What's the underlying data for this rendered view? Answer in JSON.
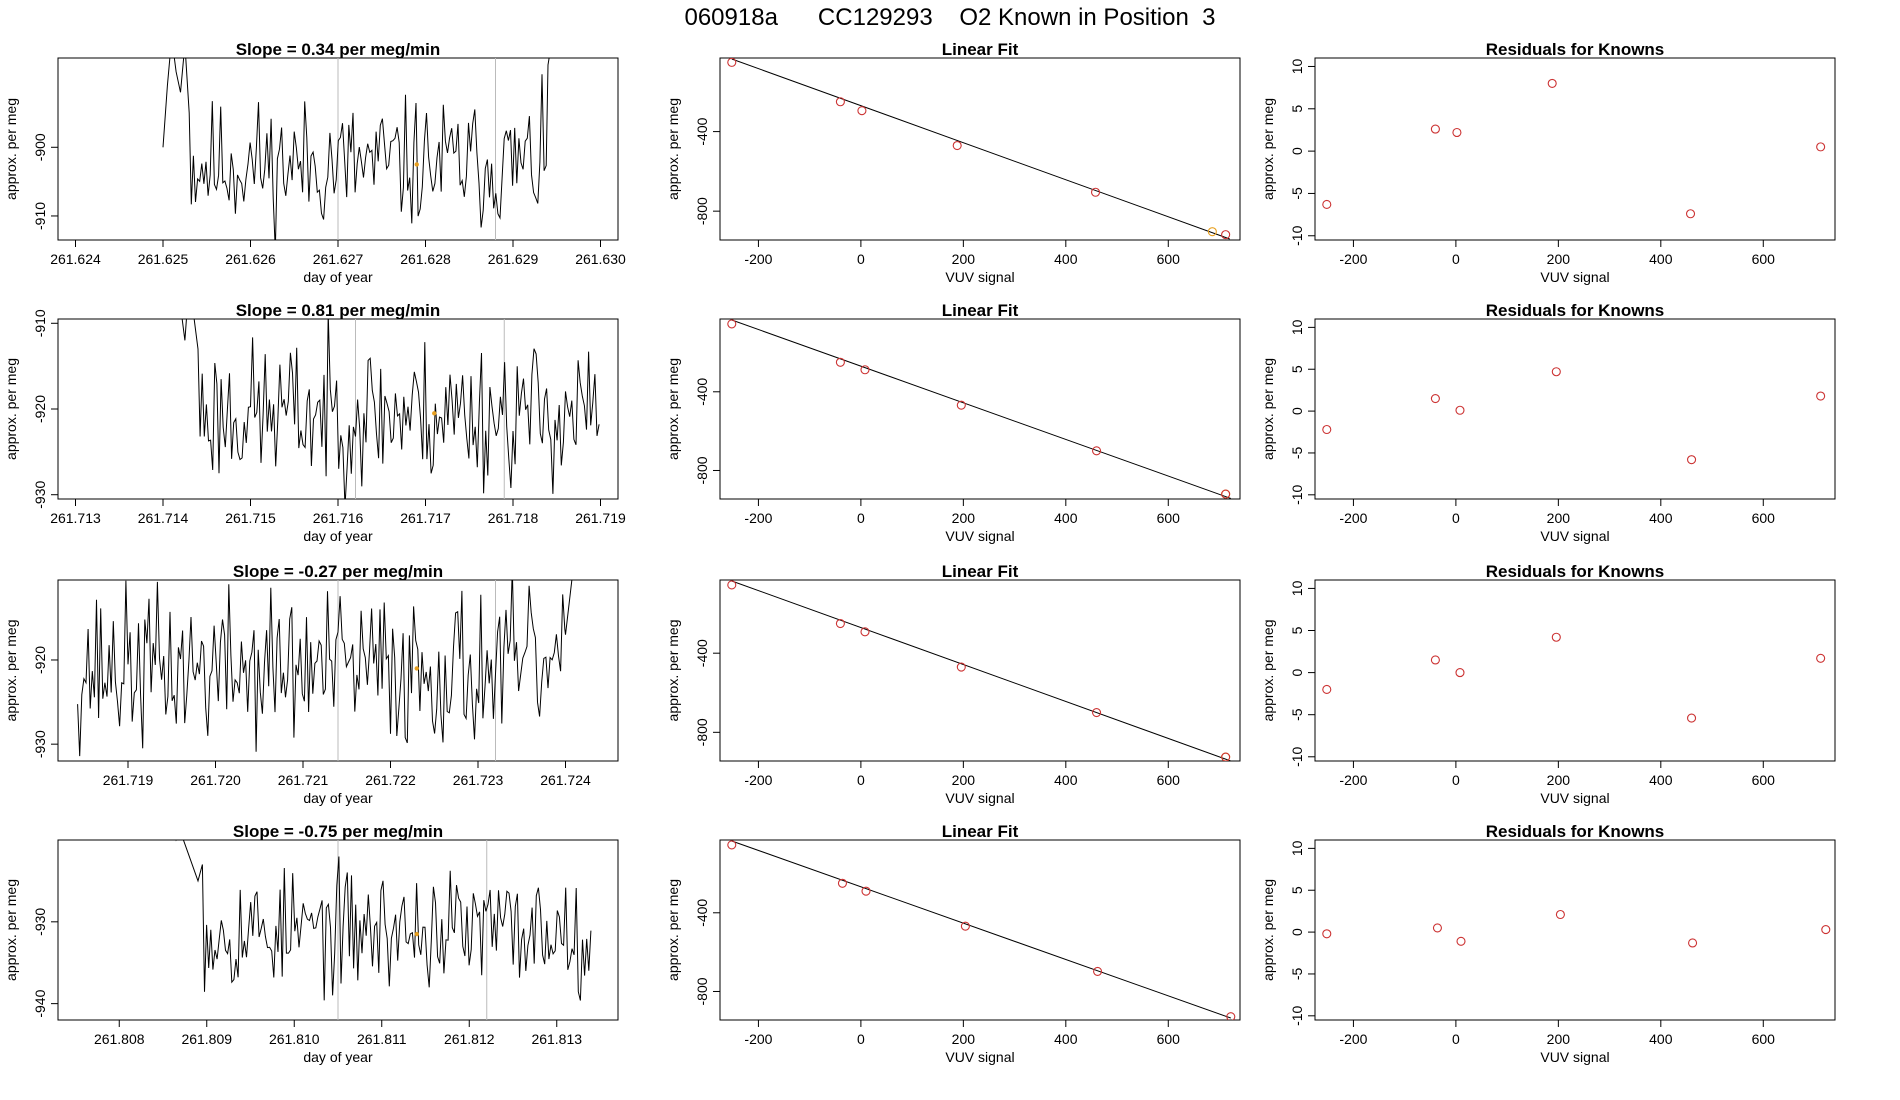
{
  "page_title": "060918a      CC129293    O2 Known in Position  3",
  "colors": {
    "line": "#000000",
    "known_point": "#cc3333",
    "highlight_point": "#e8a020",
    "vline": "#bbbbbb"
  },
  "chart_data": [
    {
      "id": "ts-1",
      "type": "line",
      "title": "Slope =  0.34  per meg/min",
      "xlabel": "day of year",
      "ylabel": "approx. per meg",
      "xlim": [
        261.6238,
        261.6302
      ],
      "ylim": [
        -913.5,
        -887.0
      ],
      "xticks": [
        261.624,
        261.625,
        261.626,
        261.627,
        261.628,
        261.629,
        261.63
      ],
      "xtick_labels": [
        "261.624",
        "261.625",
        "261.626",
        "261.627",
        "261.628",
        "261.629",
        "261.630"
      ],
      "yticks": [
        -900,
        -910
      ],
      "ytick_labels": [
        "-900",
        "-910"
      ],
      "series_start": 261.625,
      "series_end": 261.6295,
      "vlines": [
        261.627,
        261.6288
      ],
      "highlight": {
        "x": 261.6279,
        "y": -902.5
      },
      "seed": 11,
      "base": -902.5,
      "spread": 4.6,
      "ramp_points": [
        [
          261.625,
          -900.0
        ],
        [
          261.62505,
          -891.0
        ],
        [
          261.6251,
          -884.0
        ],
        [
          261.62515,
          -889.0
        ],
        [
          261.6252,
          -892.0
        ],
        [
          261.62525,
          -885.0
        ],
        [
          261.6253,
          -895.0
        ]
      ],
      "ramp_end_points": [
        [
          261.6294,
          -888.0
        ],
        [
          261.6295,
          -880.0
        ]
      ]
    },
    {
      "id": "fit-1",
      "type": "scatter",
      "title": "Linear Fit",
      "xlabel": "VUV signal",
      "ylabel": "approx. per meg",
      "xlim": [
        -275,
        740
      ],
      "ylim": [
        -945,
        -30
      ],
      "xticks": [
        -200,
        0,
        200,
        400,
        600
      ],
      "xtick_labels": [
        "-200",
        "0",
        "200",
        "400",
        "600"
      ],
      "yticks": [
        -400,
        -800
      ],
      "ytick_labels": [
        "-400",
        "-800"
      ],
      "fit_line": [
        [
          -252,
          -35
        ],
        [
          720,
          -940
        ]
      ],
      "x": [
        -252,
        -40,
        2,
        188,
        458,
        712
      ],
      "y": [
        -52,
        -250,
        -295,
        -470,
        -705,
        -918
      ],
      "highlight": {
        "x": 686,
        "y": -903
      }
    },
    {
      "id": "res-1",
      "type": "scatter",
      "title": "Residuals for Knowns",
      "xlabel": "VUV signal",
      "ylabel": "approx. per meg",
      "xlim": [
        -275,
        740
      ],
      "ylim": [
        -10.5,
        11
      ],
      "xticks": [
        -200,
        0,
        200,
        400,
        600
      ],
      "xtick_labels": [
        "-200",
        "0",
        "200",
        "400",
        "600"
      ],
      "yticks": [
        10,
        5,
        0,
        -5,
        -10
      ],
      "ytick_labels": [
        "10",
        "5",
        "0",
        "-5",
        "-10"
      ],
      "x": [
        -252,
        -40,
        2,
        188,
        458,
        712
      ],
      "y": [
        -6.3,
        2.6,
        2.2,
        8.0,
        -7.4,
        0.5
      ]
    },
    {
      "id": "ts-2",
      "type": "line",
      "title": "Slope =  0.81  per meg/min",
      "xlabel": "day of year",
      "ylabel": "approx. per meg",
      "xlim": [
        261.7128,
        261.7192
      ],
      "ylim": [
        -930.5,
        -909.5
      ],
      "xticks": [
        261.713,
        261.714,
        261.715,
        261.716,
        261.717,
        261.718,
        261.719
      ],
      "xtick_labels": [
        "261.713",
        "261.714",
        "261.715",
        "261.716",
        "261.717",
        "261.718",
        "261.719"
      ],
      "yticks": [
        -910,
        -920,
        -930
      ],
      "ytick_labels": [
        "-910",
        "-920",
        "-930"
      ],
      "series_start": 261.7142,
      "series_end": 261.719,
      "vlines": [
        261.7162,
        261.7179
      ],
      "highlight": {
        "x": 261.7171,
        "y": -920.5
      },
      "seed": 23,
      "base": -920.5,
      "spread": 4.2,
      "ramp_points": [
        [
          261.7142,
          -908.0
        ],
        [
          261.71425,
          -912.0
        ],
        [
          261.7143,
          -905.0
        ],
        [
          261.71435,
          -909.0
        ],
        [
          261.7144,
          -913.0
        ]
      ],
      "ramp_end_points": []
    },
    {
      "id": "fit-2",
      "type": "scatter",
      "title": "Linear Fit",
      "xlabel": "VUV signal",
      "ylabel": "approx. per meg",
      "xlim": [
        -275,
        740
      ],
      "ylim": [
        -945,
        -30
      ],
      "xticks": [
        -200,
        0,
        200,
        400,
        600
      ],
      "xtick_labels": [
        "-200",
        "0",
        "200",
        "400",
        "600"
      ],
      "yticks": [
        -400,
        -800
      ],
      "ytick_labels": [
        "-400",
        "-800"
      ],
      "fit_line": [
        [
          -252,
          -35
        ],
        [
          722,
          -942
        ]
      ],
      "x": [
        -252,
        -40,
        8,
        196,
        460,
        712
      ],
      "y": [
        -55,
        -250,
        -288,
        -468,
        -700,
        -920
      ],
      "highlight": {
        "x": 712,
        "y": -920
      }
    },
    {
      "id": "res-2",
      "type": "scatter",
      "title": "Residuals for Knowns",
      "xlabel": "VUV signal",
      "ylabel": "approx. per meg",
      "xlim": [
        -275,
        740
      ],
      "ylim": [
        -10.5,
        11
      ],
      "xticks": [
        -200,
        0,
        200,
        400,
        600
      ],
      "xtick_labels": [
        "-200",
        "0",
        "200",
        "400",
        "600"
      ],
      "yticks": [
        10,
        5,
        0,
        -5,
        -10
      ],
      "ytick_labels": [
        "10",
        "5",
        "0",
        "-5",
        "-10"
      ],
      "x": [
        -252,
        -40,
        8,
        196,
        460,
        712
      ],
      "y": [
        -2.2,
        1.5,
        0.1,
        4.7,
        -5.8,
        1.8
      ]
    },
    {
      "id": "ts-3",
      "type": "line",
      "title": "Slope =  -0.27  per meg/min",
      "xlabel": "day of year",
      "ylabel": "approx. per meg",
      "xlim": [
        261.7182,
        261.7246
      ],
      "ylim": [
        -932.0,
        -910.5
      ],
      "xticks": [
        261.719,
        261.72,
        261.721,
        261.722,
        261.723,
        261.724
      ],
      "xtick_labels": [
        "261.719",
        "261.720",
        "261.721",
        "261.722",
        "261.723",
        "261.724"
      ],
      "yticks": [
        -920,
        -930
      ],
      "ytick_labels": [
        "-920",
        "-930"
      ],
      "series_start": 261.7184,
      "series_end": 261.7241,
      "vlines": [
        261.7214,
        261.7232
      ],
      "highlight": {
        "x": 261.7223,
        "y": -921.0
      },
      "seed": 37,
      "base": -921.0,
      "spread": 4.6,
      "ramp_points": [],
      "ramp_end_points": [
        [
          261.724,
          -917.0
        ],
        [
          261.7241,
          -908.0
        ]
      ]
    },
    {
      "id": "fit-3",
      "type": "scatter",
      "title": "Linear Fit",
      "xlabel": "VUV signal",
      "ylabel": "approx. per meg",
      "xlim": [
        -275,
        740
      ],
      "ylim": [
        -945,
        -30
      ],
      "xticks": [
        -200,
        0,
        200,
        400,
        600
      ],
      "xtick_labels": [
        "-200",
        "0",
        "200",
        "400",
        "600"
      ],
      "yticks": [
        -400,
        -800
      ],
      "ytick_labels": [
        "-400",
        "-800"
      ],
      "fit_line": [
        [
          -252,
          -35
        ],
        [
          722,
          -945
        ]
      ],
      "x": [
        -252,
        -40,
        8,
        196,
        460,
        712
      ],
      "y": [
        -55,
        -250,
        -292,
        -470,
        -700,
        -925
      ],
      "highlight": {
        "x": 712,
        "y": -925
      }
    },
    {
      "id": "res-3",
      "type": "scatter",
      "title": "Residuals for Knowns",
      "xlabel": "VUV signal",
      "ylabel": "approx. per meg",
      "xlim": [
        -275,
        740
      ],
      "ylim": [
        -10.5,
        11
      ],
      "xticks": [
        -200,
        0,
        200,
        400,
        600
      ],
      "xtick_labels": [
        "-200",
        "0",
        "200",
        "400",
        "600"
      ],
      "yticks": [
        10,
        5,
        0,
        -5,
        -10
      ],
      "ytick_labels": [
        "10",
        "5",
        "0",
        "-5",
        "-10"
      ],
      "x": [
        -252,
        -40,
        8,
        196,
        460,
        712
      ],
      "y": [
        -2.0,
        1.5,
        0.0,
        4.2,
        -5.4,
        1.7
      ]
    },
    {
      "id": "ts-4",
      "type": "line",
      "title": "Slope =  -0.75  per meg/min",
      "xlabel": "day of year",
      "ylabel": "approx. per meg",
      "xlim": [
        261.8073,
        261.8137
      ],
      "ylim": [
        -942.0,
        -920.0
      ],
      "xticks": [
        261.808,
        261.809,
        261.81,
        261.811,
        261.812,
        261.813
      ],
      "xtick_labels": [
        "261.808",
        "261.809",
        "261.810",
        "261.811",
        "261.812",
        "261.813"
      ],
      "yticks": [
        -930,
        -940
      ],
      "ytick_labels": [
        "-930",
        "-940"
      ],
      "series_start": 261.8086,
      "series_end": 261.8134,
      "vlines": [
        261.8105,
        261.8122
      ],
      "highlight": {
        "x": 261.8114,
        "y": -931.5
      },
      "seed": 53,
      "base": -931.0,
      "spread": 3.6,
      "ramp_points": [
        [
          261.8086,
          -918.0
        ],
        [
          261.80865,
          -920.0
        ],
        [
          261.8087,
          -919.0
        ],
        [
          261.8088,
          -922.0
        ],
        [
          261.8089,
          -925.0
        ],
        [
          261.80895,
          -923.0
        ]
      ],
      "ramp_end_points": []
    },
    {
      "id": "fit-4",
      "type": "scatter",
      "title": "Linear Fit",
      "xlabel": "VUV signal",
      "ylabel": "approx. per meg",
      "xlim": [
        -275,
        740
      ],
      "ylim": [
        -945,
        -30
      ],
      "xticks": [
        -200,
        0,
        200,
        400,
        600
      ],
      "xtick_labels": [
        "-200",
        "0",
        "200",
        "400",
        "600"
      ],
      "yticks": [
        -400,
        -800
      ],
      "ytick_labels": [
        "-400",
        "-800"
      ],
      "fit_line": [
        [
          -252,
          -35
        ],
        [
          722,
          -935
        ]
      ],
      "x": [
        -252,
        -36,
        10,
        204,
        462,
        722
      ],
      "y": [
        -55,
        -250,
        -290,
        -468,
        -698,
        -928
      ],
      "highlight": null
    },
    {
      "id": "res-4",
      "type": "scatter",
      "title": "Residuals for Knowns",
      "xlabel": "VUV signal",
      "ylabel": "approx. per meg",
      "xlim": [
        -275,
        740
      ],
      "ylim": [
        -10.5,
        11
      ],
      "xticks": [
        -200,
        0,
        200,
        400,
        600
      ],
      "xtick_labels": [
        "-200",
        "0",
        "200",
        "400",
        "600"
      ],
      "yticks": [
        10,
        5,
        0,
        -5,
        -10
      ],
      "ytick_labels": [
        "10",
        "5",
        "0",
        "-5",
        "-10"
      ],
      "x": [
        -252,
        -36,
        10,
        204,
        462,
        722
      ],
      "y": [
        -0.2,
        0.5,
        -1.1,
        2.1,
        -1.3,
        0.3
      ]
    }
  ]
}
